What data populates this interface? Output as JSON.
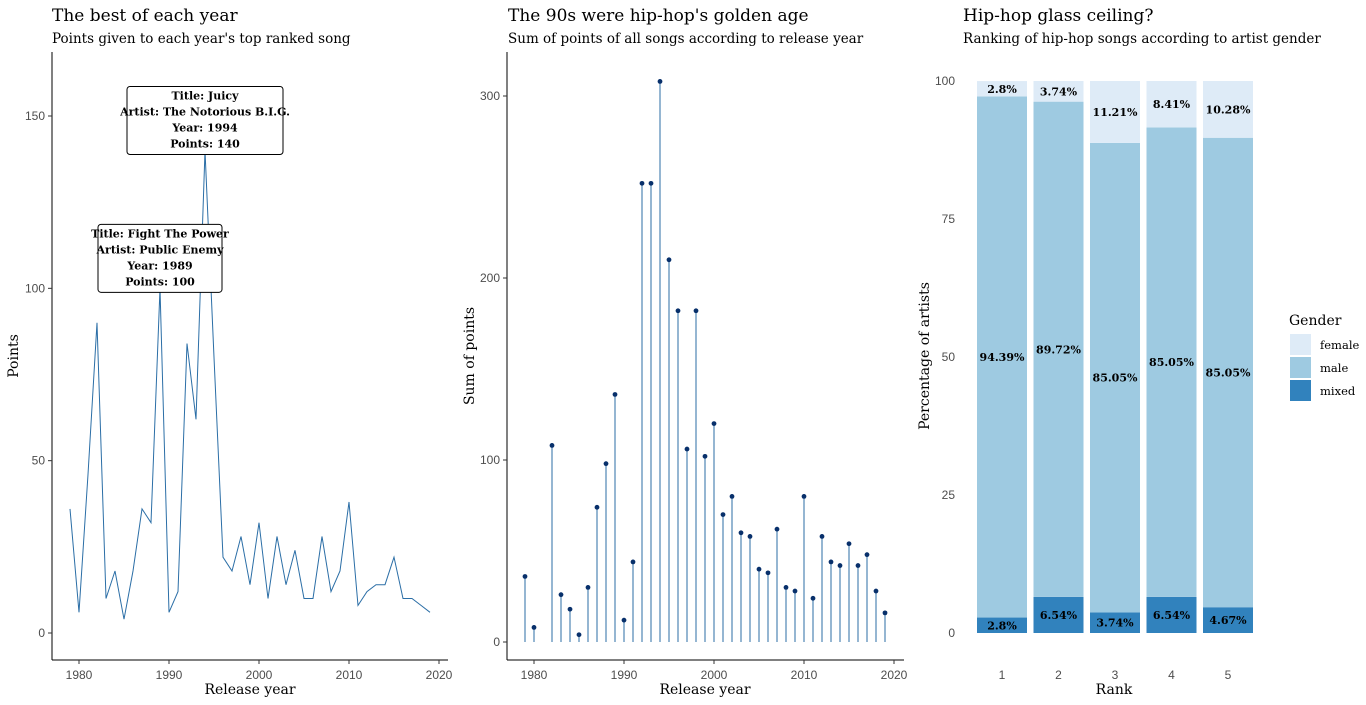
{
  "chart_data": [
    {
      "type": "line",
      "title": "The best of each year",
      "subtitle": "Points given to each year's top ranked song",
      "xlabel": "Release year",
      "ylabel": "Points",
      "xlim": [
        1979,
        2019
      ],
      "ylim": [
        0,
        165
      ],
      "xticks": [
        1980,
        1990,
        2000,
        2010,
        2020
      ],
      "yticks": [
        0,
        50,
        100,
        150
      ],
      "grid": false,
      "color": "#2b6ea6",
      "x": [
        1979,
        1980,
        1981,
        1982,
        1983,
        1984,
        1985,
        1986,
        1987,
        1988,
        1989,
        1990,
        1991,
        1992,
        1993,
        1994,
        1995,
        1996,
        1997,
        1998,
        1999,
        2000,
        2001,
        2002,
        2003,
        2004,
        2005,
        2006,
        2007,
        2008,
        2009,
        2010,
        2011,
        2012,
        2013,
        2014,
        2015,
        2016,
        2017,
        2018,
        2019
      ],
      "y": [
        36,
        6,
        46,
        90,
        10,
        18,
        4,
        18,
        36,
        32,
        100,
        6,
        12,
        84,
        62,
        140,
        80,
        22,
        18,
        28,
        14,
        32,
        10,
        28,
        14,
        24,
        10,
        10,
        28,
        12,
        18,
        38,
        8,
        12,
        14,
        14,
        22,
        10,
        10,
        8,
        6
      ],
      "annotations": [
        {
          "x": 1994,
          "y": 140,
          "lines": [
            "Title: Juicy",
            "Artist: The Notorious B.I.G.",
            "Year: 1994",
            "Points: 140"
          ]
        },
        {
          "x": 1989,
          "y": 100,
          "lines": [
            "Title: Fight The Power",
            "Artist: Public Enemy",
            "Year: 1989",
            "Points: 100"
          ]
        }
      ]
    },
    {
      "type": "lollipop",
      "title": "The 90s were hip-hop's golden age",
      "subtitle": "Sum of points of all songs according to release year",
      "xlabel": "Release year",
      "ylabel": "Sum of points",
      "xlim": [
        1979,
        2019
      ],
      "ylim": [
        0,
        320
      ],
      "xticks": [
        1980,
        1990,
        2000,
        2010,
        2020
      ],
      "yticks": [
        0,
        100,
        200,
        300
      ],
      "grid": false,
      "stem_color": "#2b6ea6",
      "point_color": "#08306b",
      "x": [
        1979,
        1980,
        1982,
        1983,
        1984,
        1985,
        1986,
        1987,
        1988,
        1989,
        1990,
        1991,
        1992,
        1993,
        1994,
        1995,
        1996,
        1997,
        1998,
        1999,
        2000,
        2001,
        2002,
        2003,
        2004,
        2005,
        2006,
        2007,
        2008,
        2009,
        2010,
        2011,
        2012,
        2013,
        2014,
        2015,
        2016,
        2017,
        2018,
        2019
      ],
      "y": [
        36,
        8,
        108,
        26,
        18,
        4,
        30,
        74,
        98,
        136,
        12,
        44,
        252,
        252,
        308,
        210,
        182,
        106,
        182,
        102,
        120,
        70,
        80,
        60,
        58,
        40,
        38,
        62,
        30,
        28,
        80,
        24,
        58,
        44,
        42,
        54,
        42,
        48,
        28,
        16
      ]
    },
    {
      "type": "bar",
      "stacked": true,
      "title": "Hip-hop glass ceiling?",
      "subtitle": "Ranking of hip-hop songs according to artist gender",
      "xlabel": "Rank",
      "ylabel": "Percentage of artists",
      "categories": [
        "1",
        "2",
        "3",
        "4",
        "5"
      ],
      "ylim": [
        0,
        100
      ],
      "yticks": [
        0,
        25,
        50,
        75,
        100
      ],
      "grid": false,
      "legend": {
        "title": "Gender",
        "position": "right"
      },
      "series": [
        {
          "name": "mixed",
          "color": "#3182bd",
          "values": [
            2.8,
            6.54,
            3.74,
            6.54,
            4.67
          ],
          "labels": [
            "2.8%",
            "6.54%",
            "3.74%",
            "6.54%",
            "4.67%"
          ]
        },
        {
          "name": "male",
          "color": "#9ecae1",
          "values": [
            94.39,
            89.72,
            85.05,
            85.05,
            85.05
          ],
          "labels": [
            "94.39%",
            "89.72%",
            "85.05%",
            "85.05%",
            "85.05%"
          ]
        },
        {
          "name": "female",
          "color": "#deebf7",
          "values": [
            2.8,
            3.74,
            11.21,
            8.41,
            10.28
          ],
          "labels": [
            "2.8%",
            "3.74%",
            "11.21%",
            "8.41%",
            "10.28%"
          ]
        }
      ],
      "legend_order": [
        "female",
        "male",
        "mixed"
      ]
    }
  ]
}
